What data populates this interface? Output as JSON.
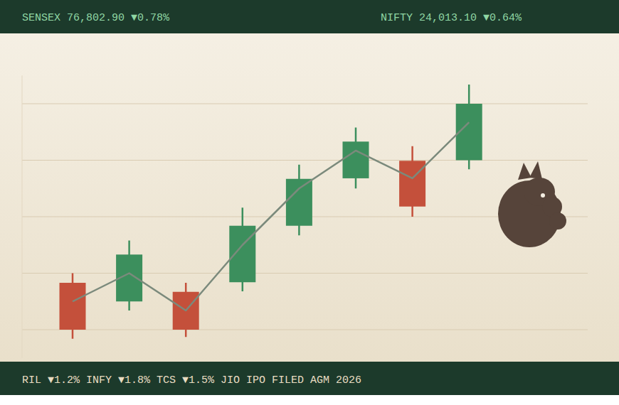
{
  "header": {
    "left": "SENSEX 76,802.90 ▼0.78%",
    "right": "NIFTY 24,013.10 ▼0.64%"
  },
  "chart_data": {
    "type": "candlestick",
    "categories": [
      null,
      null,
      null,
      null,
      null,
      null,
      null,
      null
    ],
    "series": [
      {
        "type": "candlestick",
        "open": [
          0.83,
          0.5,
          0.67,
          0.84,
          1.84,
          2.68,
          2.99,
          3.0
        ],
        "high": [
          1.0,
          1.58,
          0.83,
          2.16,
          2.92,
          3.58,
          3.25,
          4.34
        ],
        "low": [
          -0.16,
          0.34,
          -0.13,
          0.68,
          1.67,
          2.5,
          2.0,
          2.84
        ],
        "close": [
          0.0,
          1.33,
          0.0,
          1.84,
          2.67,
          3.33,
          2.18,
          4.0
        ]
      },
      {
        "type": "line",
        "color": "#7b8a7c",
        "values": [
          0.5,
          1.0,
          0.34,
          1.5,
          2.5,
          3.17,
          2.68,
          3.67
        ]
      }
    ],
    "ylim": [
      -0.5,
      4.5
    ],
    "yticks": [
      0,
      1,
      2,
      3,
      4
    ],
    "grid": true,
    "tick_labels": false
  },
  "footer": {
    "ticker": "RIL ▼1.2% INFY ▼1.8% TCS ▼1.5% JIO IPO FILED AGM 2026"
  }
}
